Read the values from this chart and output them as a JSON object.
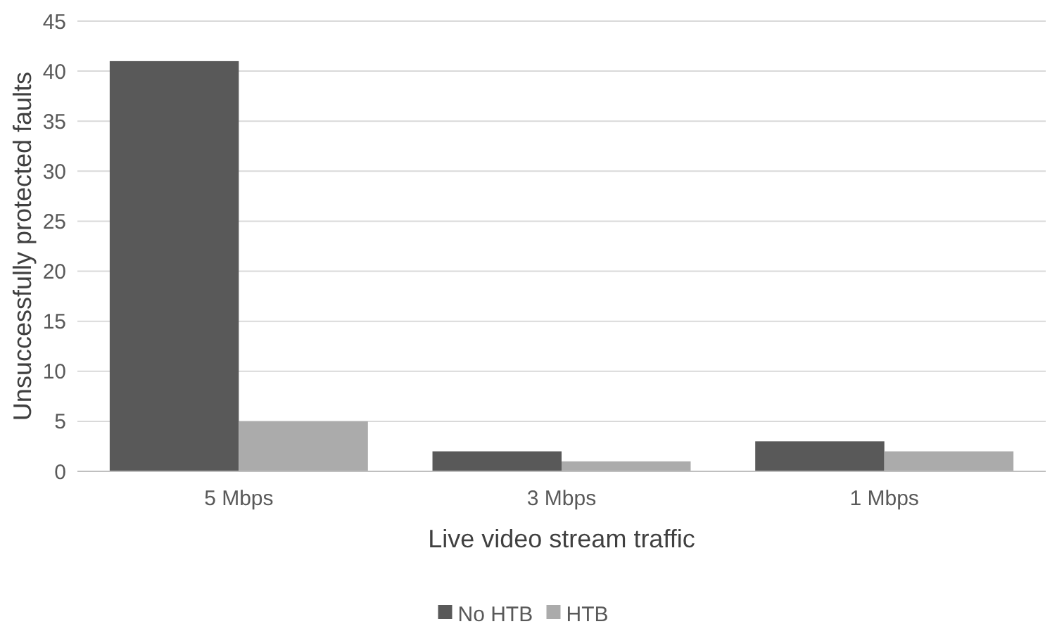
{
  "chart_data": {
    "type": "bar",
    "xlabel": "Live video stream traffic",
    "ylabel": "Unsuccessfully protected faults",
    "categories": [
      "5 Mbps",
      "3 Mbps",
      "1 Mbps"
    ],
    "series": [
      {
        "name": "No HTB",
        "color": "#595959",
        "values": [
          41,
          2,
          3
        ]
      },
      {
        "name": "HTB",
        "color": "#ababab",
        "values": [
          5,
          1,
          2
        ]
      }
    ],
    "ylim": [
      0,
      45
    ],
    "yticks": [
      0,
      5,
      10,
      15,
      20,
      25,
      30,
      35,
      40,
      45
    ],
    "grid": "y",
    "legend": "bottom"
  }
}
